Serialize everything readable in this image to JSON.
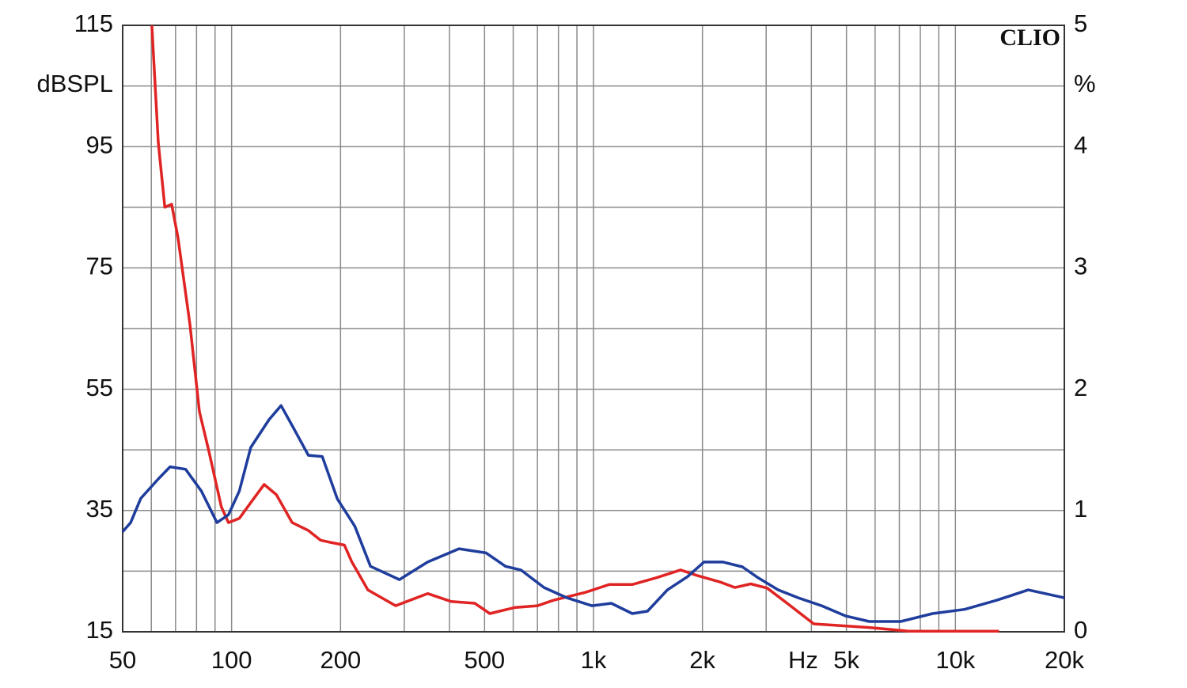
{
  "chart_data": {
    "type": "line",
    "brand": "CLIO",
    "y_label": "dBSPL",
    "y2_label": "%",
    "x_label": "Hz",
    "log_x": true,
    "grid": true,
    "xlim": [
      50,
      20000
    ],
    "xticks": [
      50,
      100,
      200,
      500,
      {
        "value": 1000,
        "label": "1k"
      },
      {
        "value": 2000,
        "label": "2k"
      },
      {
        "value": 5000,
        "label": "5k"
      },
      {
        "value": 10000,
        "label": "10k"
      },
      {
        "value": 20000,
        "label": "20k"
      }
    ],
    "xgrid_minor": [
      60,
      70,
      80,
      90,
      300,
      400,
      600,
      700,
      800,
      900,
      3000,
      4000,
      6000,
      7000,
      8000,
      9000
    ],
    "ylim": [
      15,
      115
    ],
    "yticks": [
      15,
      35,
      55,
      75,
      95,
      115
    ],
    "ygrid_minor": [
      25,
      45,
      65,
      85,
      105
    ],
    "y2lim": [
      0,
      5
    ],
    "y2ticks": [
      0,
      1,
      2,
      3,
      4,
      5
    ],
    "series": [
      {
        "color": "#e02424",
        "x": [
          60.2,
          62.7,
          65.4,
          68.3,
          71.1,
          76.7,
          81.5,
          86.5,
          93.7,
          98,
          105,
          113,
          123,
          133,
          147,
          163,
          176,
          189,
          205,
          215,
          238,
          284,
          348,
          404,
          470,
          517,
          605,
          700,
          775,
          950,
          1105,
          1280,
          1490,
          1740,
          1930,
          2240,
          2460,
          2720,
          3020,
          3500,
          4060,
          5780,
          7420,
          9200,
          13200
        ],
        "values": [
          115,
          95.7,
          85,
          85.5,
          80,
          65.7,
          51.3,
          44.8,
          35.6,
          33,
          33.7,
          36.3,
          39.3,
          37.6,
          33,
          31.7,
          30.1,
          29.7,
          29.3,
          26.5,
          21.9,
          19.3,
          21.3,
          20,
          19.7,
          18,
          19,
          19.3,
          20.2,
          21.5,
          22.8,
          22.8,
          23.9,
          25.2,
          24.3,
          23.2,
          22.3,
          22.9,
          22.2,
          19.3,
          16.3,
          15.7,
          15.1,
          15.1,
          15.1
        ]
      },
      {
        "color": "#1f3d9c",
        "x": [
          50,
          52.6,
          56.1,
          62.7,
          67.6,
          74.6,
          82.5,
          91.1,
          98,
          105,
          113,
          127,
          137,
          148,
          163,
          178,
          196,
          219,
          242,
          291,
          348,
          425,
          505,
          571,
          630,
          730,
          845,
          990,
          1120,
          1280,
          1410,
          1600,
          1820,
          2020,
          2280,
          2580,
          2850,
          3240,
          3680,
          4270,
          4980,
          5780,
          7060,
          8650,
          10600,
          13000,
          15900,
          20000
        ],
        "values": [
          31.5,
          33,
          37,
          40.2,
          42.2,
          41.8,
          38.2,
          33,
          34.3,
          38.2,
          45.4,
          50,
          52.3,
          48.7,
          44.1,
          43.9,
          36.9,
          32.4,
          25.8,
          23.6,
          26.5,
          28.7,
          28,
          25.8,
          25.2,
          22.3,
          20.6,
          19.3,
          19.7,
          18,
          18.4,
          21.9,
          24.1,
          26.5,
          26.5,
          25.7,
          23.9,
          21.9,
          20.6,
          19.3,
          17.6,
          16.7,
          16.7,
          18,
          18.7,
          20.2,
          21.9,
          20.6
        ]
      }
    ]
  }
}
